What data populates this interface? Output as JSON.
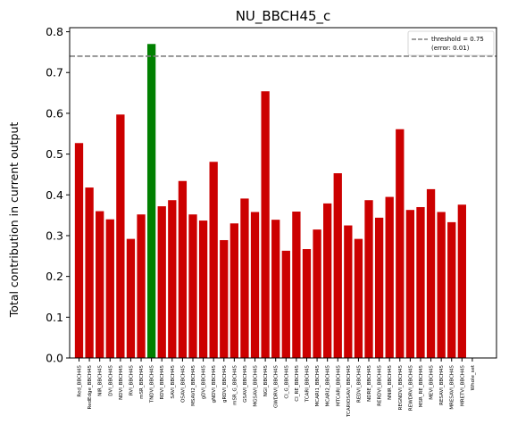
{
  "chart_data": {
    "type": "bar",
    "title": "NU_BBCH45_c",
    "xlabel": "",
    "ylabel": "Total contribution in current output",
    "ylim": [
      0,
      0.81
    ],
    "yticks": [
      "0.0",
      "0.1",
      "0.2",
      "0.3",
      "0.4",
      "0.5",
      "0.6",
      "0.7",
      "0.8"
    ],
    "grid": false,
    "categories": [
      "Red_BBCH45",
      "RedEdge_BBCH45",
      "NIR_BBCH45",
      "DVI_BBCH45",
      "NDVI_BBCH45",
      "RVI_BBCH45",
      "mSR_BBCH45",
      "TNDVI_BBCH45",
      "RDVI_BBCH45",
      "SAVI_BBCH45",
      "OSAVI_BBCH45",
      "MSAVI2_BBCH45",
      "gDVI_BBCH45",
      "gNDVI_BBCH45",
      "gRDVI_BBCH45",
      "mSR_G_BBCH45",
      "GSAVI_BBCH45",
      "MGSAVI_BBCH45",
      "NGI_BBCH45",
      "GWDRVI_BBCH45",
      "CI_G_BBCH45",
      "CI_RE_BBCH45",
      "TCARI_BBCH45",
      "MCARI1_BBCH45",
      "MCARI2_BBCH45",
      "MTCARI_BBCH45",
      "TCARIOSAVI_BBCH45",
      "REDVI_BBCH45",
      "NDRE_BBCH45",
      "RERDVI_BBCH45",
      "NNIR_BBCH45",
      "REGNDVI_BBCH45",
      "REWDRVI_BBCH45",
      "MSR_RE_BBCH45",
      "MEVI_BBCH45",
      "RESAVI_BBCH45",
      "MRESAVI_BBCH45",
      "MRETVI_BBCH45",
      "Whole_set"
    ],
    "values": [
      0.527,
      0.418,
      0.36,
      0.34,
      0.597,
      0.292,
      0.352,
      0.77,
      0.372,
      0.387,
      0.434,
      0.352,
      0.337,
      0.481,
      0.289,
      0.33,
      0.391,
      0.358,
      0.654,
      0.339,
      0.263,
      0.359,
      0.267,
      0.315,
      0.379,
      0.453,
      0.325,
      0.292,
      0.387,
      0.344,
      0.395,
      0.561,
      0.363,
      0.37,
      0.414,
      0.358,
      0.333,
      0.376,
      null
    ],
    "highlight_index": 7,
    "bar_color": "#cc0000",
    "highlight_color": "#008000",
    "threshold": {
      "value": 0.74,
      "color": "#808080",
      "label_line1": "threshold = 0.75",
      "label_line2": "(error: 0.01)"
    },
    "legend_position": "top-right"
  }
}
